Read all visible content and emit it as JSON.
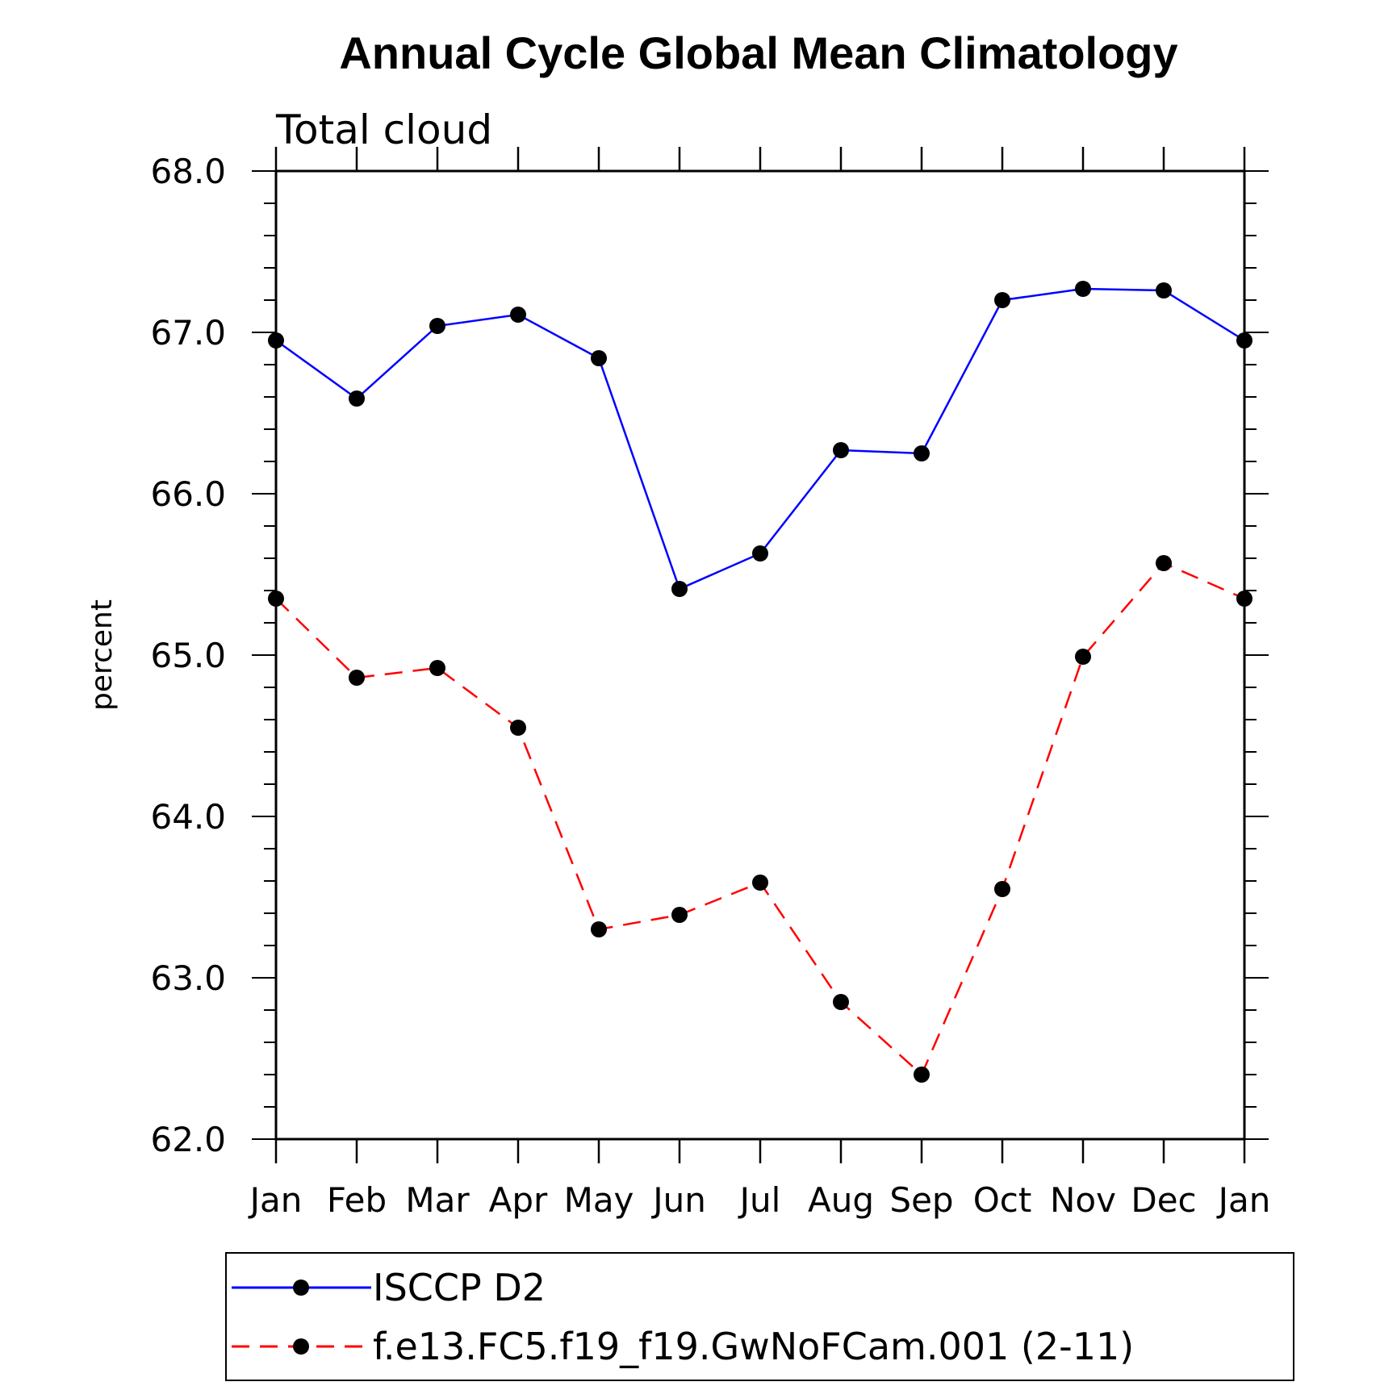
{
  "chart_data": {
    "type": "line",
    "title": "Annual Cycle Global Mean Climatology",
    "subtitle": "Total cloud",
    "xlabel": "",
    "ylabel": "percent",
    "categories": [
      "Jan",
      "Feb",
      "Mar",
      "Apr",
      "May",
      "Jun",
      "Jul",
      "Aug",
      "Sep",
      "Oct",
      "Nov",
      "Dec",
      "Jan"
    ],
    "ylim": [
      62.0,
      68.0
    ],
    "yticks": [
      "62.0",
      "63.0",
      "64.0",
      "65.0",
      "66.0",
      "67.0",
      "68.0"
    ],
    "series": [
      {
        "name": "ISCCP D2",
        "color": "#0000ff",
        "dash": "solid",
        "values": [
          66.95,
          66.59,
          67.04,
          67.11,
          66.84,
          65.41,
          65.63,
          66.27,
          66.25,
          67.2,
          67.27,
          67.26,
          66.95
        ]
      },
      {
        "name": "f.e13.FC5.f19_f19.GwNoFCam.001 (2-11)",
        "color": "#ff0000",
        "dash": "dashed",
        "values": [
          65.35,
          64.86,
          64.92,
          64.55,
          63.3,
          63.39,
          63.59,
          62.85,
          62.4,
          63.55,
          64.99,
          65.57,
          65.35
        ]
      }
    ],
    "legend_position": "bottom"
  }
}
